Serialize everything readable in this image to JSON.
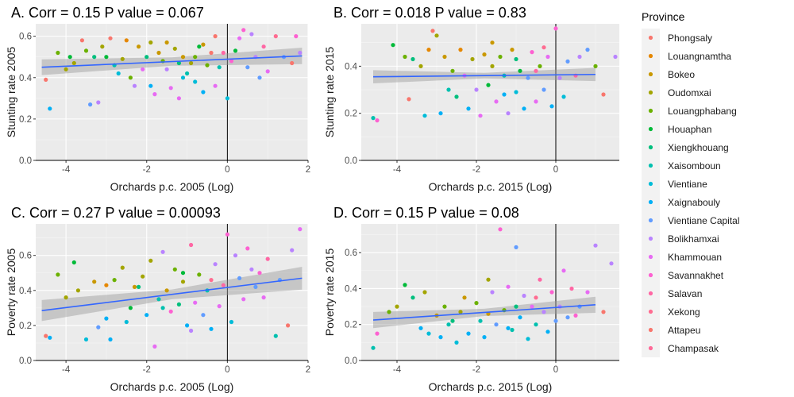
{
  "legend": {
    "title": "Province",
    "items": [
      {
        "name": "Phongsaly",
        "color": "#F8766D"
      },
      {
        "name": "Louangnamtha",
        "color": "#E58700"
      },
      {
        "name": "Bokeo",
        "color": "#C99800"
      },
      {
        "name": "Oudomxai",
        "color": "#A3A500"
      },
      {
        "name": "Louangphabang",
        "color": "#6BB100"
      },
      {
        "name": "Houaphan",
        "color": "#00BA38"
      },
      {
        "name": "Xiengkhouang",
        "color": "#00BF7D"
      },
      {
        "name": "Xaisomboun",
        "color": "#00C0AF"
      },
      {
        "name": "Vientiane",
        "color": "#00BCD8"
      },
      {
        "name": "Xaignabouly",
        "color": "#00B0F6"
      },
      {
        "name": "Vientiane Capital",
        "color": "#619CFF"
      },
      {
        "name": "Bolikhamxai",
        "color": "#B983FF"
      },
      {
        "name": "Khammouan",
        "color": "#E76BF3"
      },
      {
        "name": "Savannakhet",
        "color": "#FD61D1"
      },
      {
        "name": "Salavan",
        "color": "#FF67A4"
      },
      {
        "name": "Xekong",
        "color": "#FF6C91"
      },
      {
        "name": "Attapeu",
        "color": "#F8766D"
      },
      {
        "name": "Champasak",
        "color": "#FF6A98"
      }
    ]
  },
  "chart_data": [
    {
      "type": "scatter",
      "title": "A. Corr = 0.15  P value = 0.067",
      "xlabel": "Orchards p.c. 2005 (Log)",
      "ylabel": "Stunting rate 2005",
      "xlim": [
        -4.75,
        2.0
      ],
      "ylim": [
        0.0,
        0.66
      ],
      "xticks": [
        -4,
        -2,
        0,
        2
      ],
      "yticks": [
        0.0,
        0.2,
        0.4,
        0.6
      ],
      "fit": {
        "x": [
          -4.6,
          1.85
        ],
        "y": [
          0.45,
          0.505
        ],
        "ci_halfwidth": [
          0.038,
          0.02,
          0.04
        ]
      },
      "points": [
        [
          -4.5,
          0.39,
          0
        ],
        [
          -4.4,
          0.25,
          9
        ],
        [
          -4.2,
          0.52,
          4
        ],
        [
          -4.0,
          0.44,
          3
        ],
        [
          -3.9,
          0.5,
          5
        ],
        [
          -3.8,
          0.47,
          3
        ],
        [
          -3.6,
          0.58,
          0
        ],
        [
          -3.5,
          0.53,
          4
        ],
        [
          -3.4,
          0.27,
          10
        ],
        [
          -3.3,
          0.5,
          6
        ],
        [
          -3.2,
          0.28,
          11
        ],
        [
          -3.1,
          0.55,
          3
        ],
        [
          -3.0,
          0.5,
          5
        ],
        [
          -2.9,
          0.59,
          0
        ],
        [
          -2.8,
          0.46,
          7
        ],
        [
          -2.6,
          0.49,
          3
        ],
        [
          -2.5,
          0.58,
          1
        ],
        [
          -2.4,
          0.4,
          4
        ],
        [
          -2.3,
          0.36,
          11
        ],
        [
          -2.2,
          0.55,
          2
        ],
        [
          -2.1,
          0.44,
          12
        ],
        [
          -2.0,
          0.5,
          6
        ],
        [
          -1.9,
          0.57,
          3
        ],
        [
          -1.8,
          0.32,
          12
        ],
        [
          -1.7,
          0.52,
          2
        ],
        [
          -1.6,
          0.48,
          4
        ],
        [
          -1.5,
          0.44,
          11
        ],
        [
          -1.4,
          0.35,
          12
        ],
        [
          -1.3,
          0.54,
          3
        ],
        [
          -1.2,
          0.3,
          12
        ],
        [
          -1.1,
          0.5,
          2
        ],
        [
          -1.0,
          0.42,
          7
        ],
        [
          -0.9,
          0.47,
          3
        ],
        [
          -0.8,
          0.38,
          8
        ],
        [
          -0.7,
          0.55,
          5
        ],
        [
          -0.6,
          0.33,
          9
        ],
        [
          -0.5,
          0.46,
          4
        ],
        [
          -0.4,
          0.52,
          0
        ],
        [
          -0.3,
          0.36,
          12
        ],
        [
          -0.2,
          0.45,
          7
        ],
        [
          -0.1,
          0.52,
          14
        ],
        [
          0.0,
          0.3,
          8
        ],
        [
          0.1,
          0.48,
          13
        ],
        [
          0.2,
          0.53,
          5
        ],
        [
          0.3,
          0.59,
          12
        ],
        [
          0.4,
          0.63,
          13
        ],
        [
          0.5,
          0.45,
          10
        ],
        [
          0.6,
          0.61,
          11
        ],
        [
          0.8,
          0.4,
          10
        ],
        [
          0.9,
          0.55,
          14
        ],
        [
          1.0,
          0.43,
          12
        ],
        [
          1.2,
          0.6,
          15
        ],
        [
          1.4,
          0.5,
          10
        ],
        [
          1.6,
          0.47,
          0
        ],
        [
          1.7,
          0.6,
          13
        ],
        [
          1.8,
          0.52,
          11
        ],
        [
          -1.5,
          0.57,
          2
        ],
        [
          -1.2,
          0.47,
          6
        ],
        [
          -0.8,
          0.5,
          4
        ],
        [
          -0.3,
          0.6,
          0
        ],
        [
          0.7,
          0.5,
          11
        ],
        [
          -2.7,
          0.42,
          8
        ],
        [
          -1.9,
          0.36,
          9
        ],
        [
          -1.1,
          0.4,
          8
        ],
        [
          -0.6,
          0.56,
          2
        ]
      ]
    },
    {
      "type": "scatter",
      "title": "B. Corr = 0.018  P value = 0.83",
      "xlabel": "Orchards p.c. 2015 (Log)",
      "ylabel": "Stunting rate 2015",
      "xlim": [
        -4.9,
        1.6
      ],
      "ylim": [
        0.0,
        0.58
      ],
      "xticks": [
        -4,
        -2,
        0
      ],
      "yticks": [
        0.0,
        0.2,
        0.4
      ],
      "fit": {
        "x": [
          -4.6,
          1.0
        ],
        "y": [
          0.355,
          0.365
        ],
        "ci_halfwidth": [
          0.028,
          0.012,
          0.028
        ]
      },
      "points": [
        [
          -4.6,
          0.18,
          7
        ],
        [
          -4.5,
          0.17,
          13
        ],
        [
          -4.1,
          0.49,
          5
        ],
        [
          -3.8,
          0.44,
          4
        ],
        [
          -3.7,
          0.26,
          0
        ],
        [
          -3.6,
          0.43,
          6
        ],
        [
          -3.4,
          0.4,
          3
        ],
        [
          -3.3,
          0.19,
          8
        ],
        [
          -3.2,
          0.47,
          1
        ],
        [
          -3.1,
          0.55,
          0
        ],
        [
          -3.0,
          0.53,
          3
        ],
        [
          -2.9,
          0.2,
          9
        ],
        [
          -2.8,
          0.44,
          2
        ],
        [
          -2.6,
          0.38,
          4
        ],
        [
          -2.5,
          0.27,
          6
        ],
        [
          -2.4,
          0.47,
          1
        ],
        [
          -2.3,
          0.36,
          12
        ],
        [
          -2.2,
          0.22,
          9
        ],
        [
          -2.1,
          0.43,
          3
        ],
        [
          -2.0,
          0.3,
          11
        ],
        [
          -1.9,
          0.19,
          12
        ],
        [
          -1.8,
          0.45,
          2
        ],
        [
          -1.7,
          0.32,
          5
        ],
        [
          -1.6,
          0.4,
          3
        ],
        [
          -1.5,
          0.25,
          12
        ],
        [
          -1.4,
          0.44,
          4
        ],
        [
          -1.3,
          0.36,
          7
        ],
        [
          -1.2,
          0.2,
          11
        ],
        [
          -1.1,
          0.47,
          2
        ],
        [
          -1.0,
          0.29,
          8
        ],
        [
          -0.9,
          0.38,
          5
        ],
        [
          -0.8,
          0.22,
          9
        ],
        [
          -0.7,
          0.35,
          10
        ],
        [
          -0.6,
          0.46,
          13
        ],
        [
          -0.5,
          0.25,
          12
        ],
        [
          -0.4,
          0.4,
          4
        ],
        [
          -0.3,
          0.3,
          10
        ],
        [
          -0.2,
          0.44,
          12
        ],
        [
          -0.1,
          0.23,
          9
        ],
        [
          0.0,
          0.56,
          13
        ],
        [
          0.1,
          0.35,
          11
        ],
        [
          0.2,
          0.27,
          8
        ],
        [
          0.3,
          0.42,
          10
        ],
        [
          0.5,
          0.36,
          14
        ],
        [
          0.6,
          0.44,
          11
        ],
        [
          0.8,
          0.47,
          10
        ],
        [
          1.0,
          0.4,
          4
        ],
        [
          1.2,
          0.28,
          0
        ],
        [
          1.5,
          0.44,
          11
        ],
        [
          -1.6,
          0.5,
          2
        ],
        [
          -1.0,
          0.43,
          6
        ],
        [
          -0.5,
          0.38,
          14
        ],
        [
          -2.7,
          0.3,
          7
        ],
        [
          -1.3,
          0.28,
          9
        ],
        [
          -0.3,
          0.48,
          15
        ]
      ]
    },
    {
      "type": "scatter",
      "title": "C. Corr = 0.27  P value = 0.00093",
      "xlabel": "Orchards p.c. 2005 (Log)",
      "ylabel": "Poverty rate 2005",
      "xlim": [
        -4.75,
        2.0
      ],
      "ylim": [
        0.0,
        0.78
      ],
      "xticks": [
        -4,
        -2,
        0,
        2
      ],
      "yticks": [
        0.0,
        0.2,
        0.4,
        0.6
      ],
      "fit": {
        "x": [
          -4.6,
          1.85
        ],
        "y": [
          0.285,
          0.47
        ],
        "ci_halfwidth": [
          0.06,
          0.028,
          0.065
        ]
      },
      "points": [
        [
          -4.5,
          0.14,
          0
        ],
        [
          -4.4,
          0.13,
          9
        ],
        [
          -4.2,
          0.49,
          4
        ],
        [
          -4.0,
          0.36,
          3
        ],
        [
          -3.8,
          0.56,
          5
        ],
        [
          -3.7,
          0.4,
          3
        ],
        [
          -3.5,
          0.12,
          8
        ],
        [
          -3.3,
          0.45,
          2
        ],
        [
          -3.2,
          0.19,
          10
        ],
        [
          -3.0,
          0.43,
          1
        ],
        [
          -2.9,
          0.12,
          9
        ],
        [
          -2.8,
          0.46,
          4
        ],
        [
          -2.6,
          0.53,
          3
        ],
        [
          -2.5,
          0.22,
          8
        ],
        [
          -2.4,
          0.3,
          5
        ],
        [
          -2.3,
          0.42,
          2
        ],
        [
          -2.1,
          0.48,
          3
        ],
        [
          -2.0,
          0.26,
          9
        ],
        [
          -1.9,
          0.57,
          3
        ],
        [
          -1.8,
          0.08,
          12
        ],
        [
          -1.7,
          0.35,
          7
        ],
        [
          -1.6,
          0.62,
          11
        ],
        [
          -1.5,
          0.4,
          2
        ],
        [
          -1.4,
          0.28,
          13
        ],
        [
          -1.3,
          0.52,
          4
        ],
        [
          -1.2,
          0.32,
          6
        ],
        [
          -1.1,
          0.45,
          3
        ],
        [
          -1.0,
          0.2,
          9
        ],
        [
          -0.9,
          0.66,
          14
        ],
        [
          -0.8,
          0.33,
          12
        ],
        [
          -0.7,
          0.49,
          4
        ],
        [
          -0.6,
          0.26,
          10
        ],
        [
          -0.5,
          0.4,
          7
        ],
        [
          -0.4,
          0.18,
          9
        ],
        [
          -0.3,
          0.55,
          11
        ],
        [
          -0.2,
          0.31,
          12
        ],
        [
          -0.1,
          0.43,
          14
        ],
        [
          0.0,
          0.72,
          13
        ],
        [
          0.1,
          0.22,
          8
        ],
        [
          0.2,
          0.6,
          11
        ],
        [
          0.3,
          0.47,
          10
        ],
        [
          0.4,
          0.35,
          12
        ],
        [
          0.5,
          0.64,
          13
        ],
        [
          0.6,
          0.52,
          11
        ],
        [
          0.7,
          0.42,
          10
        ],
        [
          0.9,
          0.36,
          12
        ],
        [
          1.0,
          0.58,
          14
        ],
        [
          1.2,
          0.14,
          7
        ],
        [
          1.3,
          0.46,
          10
        ],
        [
          1.5,
          0.2,
          0
        ],
        [
          1.6,
          0.63,
          11
        ],
        [
          1.8,
          0.75,
          12
        ],
        [
          -2.2,
          0.42,
          6
        ],
        [
          -1.1,
          0.5,
          5
        ],
        [
          -0.4,
          0.46,
          15
        ],
        [
          0.8,
          0.5,
          13
        ],
        [
          -3.0,
          0.24,
          9
        ],
        [
          -1.6,
          0.3,
          7
        ],
        [
          -0.9,
          0.17,
          11
        ]
      ]
    },
    {
      "type": "scatter",
      "title": "D. Corr = 0.15  P value = 0.08",
      "xlabel": "Orchards p.c. 2015 (Log)",
      "ylabel": "Poverty rate 2015",
      "xlim": [
        -4.9,
        1.6
      ],
      "ylim": [
        0.0,
        0.76
      ],
      "xticks": [
        -4,
        -2,
        0
      ],
      "yticks": [
        0.0,
        0.2,
        0.4,
        0.6
      ],
      "fit": {
        "x": [
          -4.6,
          1.0
        ],
        "y": [
          0.225,
          0.31
        ],
        "ci_halfwidth": [
          0.045,
          0.02,
          0.045
        ]
      },
      "points": [
        [
          -4.6,
          0.07,
          7
        ],
        [
          -4.5,
          0.15,
          13
        ],
        [
          -4.2,
          0.27,
          4
        ],
        [
          -4.0,
          0.3,
          3
        ],
        [
          -3.8,
          0.42,
          5
        ],
        [
          -3.6,
          0.35,
          6
        ],
        [
          -3.4,
          0.18,
          9
        ],
        [
          -3.3,
          0.38,
          3
        ],
        [
          -3.2,
          0.15,
          8
        ],
        [
          -3.0,
          0.25,
          2
        ],
        [
          -2.9,
          0.13,
          9
        ],
        [
          -2.8,
          0.3,
          4
        ],
        [
          -2.6,
          0.22,
          6
        ],
        [
          -2.5,
          0.1,
          8
        ],
        [
          -2.4,
          0.27,
          3
        ],
        [
          -2.3,
          0.35,
          2
        ],
        [
          -2.2,
          0.15,
          9
        ],
        [
          -2.0,
          0.32,
          4
        ],
        [
          -1.9,
          0.22,
          7
        ],
        [
          -1.8,
          0.13,
          9
        ],
        [
          -1.7,
          0.26,
          2
        ],
        [
          -1.6,
          0.38,
          11
        ],
        [
          -1.5,
          0.2,
          10
        ],
        [
          -1.4,
          0.73,
          13
        ],
        [
          -1.3,
          0.28,
          4
        ],
        [
          -1.2,
          0.41,
          12
        ],
        [
          -1.1,
          0.17,
          7
        ],
        [
          -1.0,
          0.63,
          10
        ],
        [
          -0.9,
          0.24,
          9
        ],
        [
          -0.8,
          0.36,
          11
        ],
        [
          -0.7,
          0.12,
          8
        ],
        [
          -0.6,
          0.3,
          12
        ],
        [
          -0.5,
          0.2,
          7
        ],
        [
          -0.4,
          0.45,
          14
        ],
        [
          -0.3,
          0.27,
          11
        ],
        [
          -0.2,
          0.16,
          9
        ],
        [
          -0.1,
          0.38,
          13
        ],
        [
          0.0,
          0.22,
          10
        ],
        [
          0.1,
          0.3,
          11
        ],
        [
          0.2,
          0.5,
          12
        ],
        [
          0.3,
          0.24,
          10
        ],
        [
          0.4,
          0.4,
          14
        ],
        [
          0.6,
          0.3,
          10
        ],
        [
          0.8,
          0.38,
          12
        ],
        [
          1.0,
          0.64,
          11
        ],
        [
          1.2,
          0.27,
          0
        ],
        [
          1.4,
          0.54,
          11
        ],
        [
          -1.7,
          0.45,
          3
        ],
        [
          -1.0,
          0.3,
          6
        ],
        [
          -0.5,
          0.35,
          15
        ],
        [
          -2.7,
          0.2,
          7
        ],
        [
          -1.2,
          0.18,
          9
        ],
        [
          0.5,
          0.25,
          13
        ]
      ]
    }
  ]
}
